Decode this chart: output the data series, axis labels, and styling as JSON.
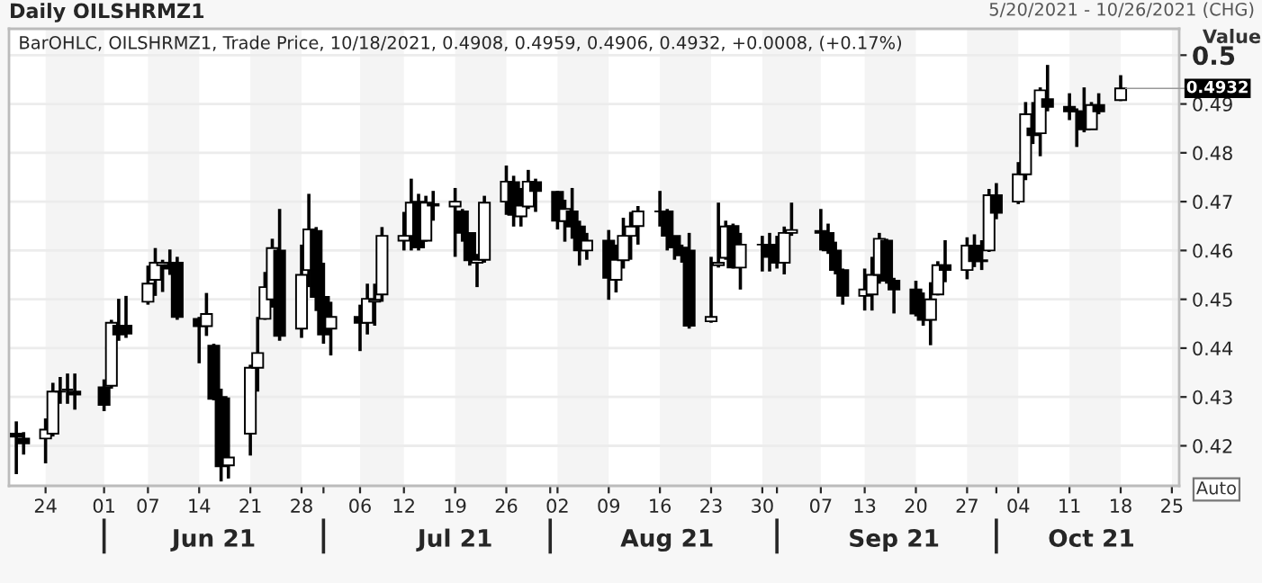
{
  "chart_data": {
    "type": "candlestick",
    "title": "Daily OILSHRMZ1",
    "subtitle": "BarOHLC, OILSHRMZ1, Trade Price, 10/18/2021, 0.4908, 0.4959, 0.4906, 0.4932, +0.0008, (+0.17%)",
    "ylabel": "Value",
    "x": [
      "2021-05-20",
      "2021-05-21",
      "2021-05-24",
      "2021-05-25",
      "2021-05-26",
      "2021-05-27",
      "2021-05-28",
      "2021-06-01",
      "2021-06-02",
      "2021-06-03",
      "2021-06-04",
      "2021-06-07",
      "2021-06-08",
      "2021-06-09",
      "2021-06-10",
      "2021-06-11",
      "2021-06-14",
      "2021-06-15",
      "2021-06-16",
      "2021-06-17",
      "2021-06-18",
      "2021-06-21",
      "2021-06-22",
      "2021-06-23",
      "2021-06-24",
      "2021-06-25",
      "2021-06-28",
      "2021-06-29",
      "2021-06-30",
      "2021-07-01",
      "2021-07-02",
      "2021-07-06",
      "2021-07-07",
      "2021-07-08",
      "2021-07-09",
      "2021-07-12",
      "2021-07-13",
      "2021-07-14",
      "2021-07-15",
      "2021-07-16",
      "2021-07-19",
      "2021-07-20",
      "2021-07-21",
      "2021-07-22",
      "2021-07-23",
      "2021-07-26",
      "2021-07-27",
      "2021-07-28",
      "2021-07-29",
      "2021-07-30",
      "2021-08-02",
      "2021-08-03",
      "2021-08-04",
      "2021-08-05",
      "2021-08-06",
      "2021-08-09",
      "2021-08-10",
      "2021-08-11",
      "2021-08-12",
      "2021-08-13",
      "2021-08-16",
      "2021-08-17",
      "2021-08-18",
      "2021-08-19",
      "2021-08-20",
      "2021-08-23",
      "2021-08-24",
      "2021-08-25",
      "2021-08-26",
      "2021-08-27",
      "2021-08-30",
      "2021-08-31",
      "2021-09-01",
      "2021-09-02",
      "2021-09-03",
      "2021-09-07",
      "2021-09-08",
      "2021-09-09",
      "2021-09-10",
      "2021-09-13",
      "2021-09-14",
      "2021-09-15",
      "2021-09-16",
      "2021-09-17",
      "2021-09-20",
      "2021-09-21",
      "2021-09-22",
      "2021-09-23",
      "2021-09-24",
      "2021-09-27",
      "2021-09-28",
      "2021-09-29",
      "2021-09-30",
      "2021-10-01",
      "2021-10-04",
      "2021-10-05",
      "2021-10-06",
      "2021-10-07",
      "2021-10-08",
      "2021-10-11",
      "2021-10-12",
      "2021-10-13",
      "2021-10-14",
      "2021-10-15",
      "2021-10-18"
    ],
    "ohlc": [
      [
        0.4225,
        0.425,
        0.4142,
        0.4219
      ],
      [
        0.4215,
        0.4228,
        0.4182,
        0.4205
      ],
      [
        0.4215,
        0.4256,
        0.4164,
        0.4233
      ],
      [
        0.4225,
        0.4329,
        0.4219,
        0.4311
      ],
      [
        0.4311,
        0.4341,
        0.4286,
        0.4311
      ],
      [
        0.4315,
        0.4348,
        0.4286,
        0.4315
      ],
      [
        0.4311,
        0.4348,
        0.4274,
        0.4305
      ],
      [
        0.432,
        0.4336,
        0.4271,
        0.4284
      ],
      [
        0.4323,
        0.4458,
        0.4317,
        0.4452
      ],
      [
        0.4446,
        0.4501,
        0.4415,
        0.4428
      ],
      [
        0.4446,
        0.4507,
        0.4421,
        0.443
      ],
      [
        0.4495,
        0.4569,
        0.4489,
        0.4532
      ],
      [
        0.454,
        0.4605,
        0.4507,
        0.4575
      ],
      [
        0.457,
        0.4581,
        0.4515,
        0.4575
      ],
      [
        0.457,
        0.4602,
        0.455,
        0.4563
      ],
      [
        0.4575,
        0.4587,
        0.4458,
        0.4464
      ],
      [
        0.446,
        0.4464,
        0.4369,
        0.4445
      ],
      [
        0.4445,
        0.4513,
        0.4425,
        0.447
      ],
      [
        0.4405,
        0.4409,
        0.4293,
        0.4296
      ],
      [
        0.43,
        0.4317,
        0.4127,
        0.4158
      ],
      [
        0.416,
        0.4299,
        0.4133,
        0.4176
      ],
      [
        0.4225,
        0.4366,
        0.418,
        0.436
      ],
      [
        0.436,
        0.4464,
        0.4311,
        0.439
      ],
      [
        0.446,
        0.4556,
        0.4458,
        0.4525
      ],
      [
        0.45,
        0.4624,
        0.4483,
        0.4605
      ],
      [
        0.46,
        0.4685,
        0.4415,
        0.4425
      ],
      [
        0.444,
        0.4612,
        0.4421,
        0.455
      ],
      [
        0.456,
        0.4716,
        0.4525,
        0.4643
      ],
      [
        0.464,
        0.4648,
        0.4476,
        0.4505
      ],
      [
        0.4505,
        0.4575,
        0.4409,
        0.4428
      ],
      [
        0.444,
        0.4495,
        0.4385,
        0.4464
      ],
      [
        0.4464,
        0.4489,
        0.4394,
        0.4452
      ],
      [
        0.4452,
        0.4532,
        0.4428,
        0.4501
      ],
      [
        0.4495,
        0.4532,
        0.4446,
        0.4499
      ],
      [
        0.451,
        0.4648,
        0.4495,
        0.463
      ],
      [
        0.462,
        0.4679,
        0.46,
        0.463
      ],
      [
        0.463,
        0.4747,
        0.46,
        0.4698
      ],
      [
        0.47,
        0.4716,
        0.46,
        0.4606
      ],
      [
        0.462,
        0.4712,
        0.4618,
        0.4698
      ],
      [
        0.4695,
        0.4722,
        0.4661,
        0.4692
      ],
      [
        0.469,
        0.4728,
        0.4587,
        0.47
      ],
      [
        0.468,
        0.4685,
        0.4618,
        0.4636
      ],
      [
        0.4636,
        0.4636,
        0.4569,
        0.458
      ],
      [
        0.4575,
        0.4593,
        0.4525,
        0.4581
      ],
      [
        0.4581,
        0.4712,
        0.4575,
        0.4698
      ],
      [
        0.47,
        0.4774,
        0.4673,
        0.4741
      ],
      [
        0.474,
        0.4753,
        0.4649,
        0.4673
      ],
      [
        0.467,
        0.4728,
        0.4649,
        0.4692
      ],
      [
        0.469,
        0.4765,
        0.4685,
        0.4741
      ],
      [
        0.474,
        0.4747,
        0.4679,
        0.4722
      ],
      [
        0.472,
        0.4722,
        0.4643,
        0.4661
      ],
      [
        0.466,
        0.4704,
        0.4618,
        0.4685
      ],
      [
        0.468,
        0.4728,
        0.4624,
        0.4649
      ],
      [
        0.4649,
        0.4661,
        0.4569,
        0.46
      ],
      [
        0.46,
        0.4636,
        0.4581,
        0.462
      ],
      [
        0.462,
        0.4642,
        0.4499,
        0.4544
      ],
      [
        0.454,
        0.4612,
        0.4514,
        0.4581
      ],
      [
        0.458,
        0.4667,
        0.4563,
        0.463
      ],
      [
        0.463,
        0.4679,
        0.4581,
        0.4649
      ],
      [
        0.465,
        0.4691,
        0.4612,
        0.468
      ],
      [
        0.468,
        0.4722,
        0.4649,
        0.468
      ],
      [
        0.468,
        0.4685,
        0.46,
        0.463
      ],
      [
        0.463,
        0.463,
        0.4581,
        0.4606
      ],
      [
        0.4606,
        0.4612,
        0.4575,
        0.459
      ],
      [
        0.46,
        0.4636,
        0.444,
        0.4446
      ],
      [
        0.4455,
        0.4587,
        0.4452,
        0.4464
      ],
      [
        0.457,
        0.4698,
        0.4565,
        0.4575
      ],
      [
        0.4585,
        0.4661,
        0.4581,
        0.4649
      ],
      [
        0.465,
        0.4655,
        0.4563,
        0.4565
      ],
      [
        0.4565,
        0.4636,
        0.452,
        0.4612
      ],
      [
        0.4612,
        0.463,
        0.4557,
        0.4612
      ],
      [
        0.4612,
        0.4636,
        0.4557,
        0.4587
      ],
      [
        0.4587,
        0.463,
        0.4563,
        0.4575
      ],
      [
        0.4575,
        0.4649,
        0.4551,
        0.4636
      ],
      [
        0.4636,
        0.4698,
        0.463,
        0.4642
      ],
      [
        0.464,
        0.4685,
        0.46,
        0.4636
      ],
      [
        0.4636,
        0.4655,
        0.4593,
        0.46
      ],
      [
        0.46,
        0.4618,
        0.4551,
        0.456
      ],
      [
        0.456,
        0.4563,
        0.4489,
        0.4507
      ],
      [
        0.4507,
        0.4563,
        0.4477,
        0.452
      ],
      [
        0.451,
        0.4587,
        0.4477,
        0.455
      ],
      [
        0.455,
        0.4636,
        0.4532,
        0.4624
      ],
      [
        0.462,
        0.4624,
        0.4532,
        0.4538
      ],
      [
        0.4538,
        0.4544,
        0.4471,
        0.452
      ],
      [
        0.452,
        0.4538,
        0.4465,
        0.4471
      ],
      [
        0.447,
        0.4514,
        0.4446,
        0.4458
      ],
      [
        0.4458,
        0.4535,
        0.4406,
        0.45
      ],
      [
        0.451,
        0.4578,
        0.4508,
        0.457
      ],
      [
        0.457,
        0.4621,
        0.4535,
        0.456
      ],
      [
        0.456,
        0.4627,
        0.4541,
        0.461
      ],
      [
        0.461,
        0.4633,
        0.4566,
        0.4578
      ],
      [
        0.4578,
        0.4621,
        0.456,
        0.458
      ],
      [
        0.46,
        0.4726,
        0.4597,
        0.4713
      ],
      [
        0.4713,
        0.4738,
        0.4664,
        0.4677
      ],
      [
        0.47,
        0.4781,
        0.4695,
        0.4756
      ],
      [
        0.4756,
        0.4904,
        0.4744,
        0.4879
      ],
      [
        0.485,
        0.4904,
        0.4818,
        0.4836
      ],
      [
        0.484,
        0.4934,
        0.4793,
        0.4928
      ],
      [
        0.491,
        0.498,
        0.4885,
        0.4894
      ],
      [
        0.4894,
        0.4922,
        0.4867,
        0.4885
      ],
      [
        0.4885,
        0.4891,
        0.4812,
        0.4885
      ],
      [
        0.4885,
        0.4934,
        0.4842,
        0.4848
      ],
      [
        0.4848,
        0.4904,
        0.4848,
        0.4898
      ],
      [
        0.4898,
        0.4922,
        0.4879,
        0.4885
      ],
      [
        0.4908,
        0.4959,
        0.4906,
        0.4932
      ]
    ],
    "color": "#000000",
    "xlim": [
      "2021-05-19",
      "2021-10-26"
    ],
    "xticks": [
      {
        "value": "2021-05-24",
        "label": "24"
      },
      {
        "value": "2021-06-01",
        "label": "01"
      },
      {
        "value": "2021-06-07",
        "label": "07"
      },
      {
        "value": "2021-06-14",
        "label": "14"
      },
      {
        "value": "2021-06-21",
        "label": "21"
      },
      {
        "value": "2021-06-28",
        "label": "28"
      },
      {
        "value": "2021-07-06",
        "label": "06"
      },
      {
        "value": "2021-07-12",
        "label": "12"
      },
      {
        "value": "2021-07-19",
        "label": "19"
      },
      {
        "value": "2021-07-26",
        "label": "26"
      },
      {
        "value": "2021-08-02",
        "label": "02"
      },
      {
        "value": "2021-08-09",
        "label": "09"
      },
      {
        "value": "2021-08-16",
        "label": "16"
      },
      {
        "value": "2021-08-23",
        "label": "23"
      },
      {
        "value": "2021-08-30",
        "label": "30"
      },
      {
        "value": "2021-09-07",
        "label": "07"
      },
      {
        "value": "2021-09-13",
        "label": "13"
      },
      {
        "value": "2021-09-20",
        "label": "20"
      },
      {
        "value": "2021-09-27",
        "label": "27"
      },
      {
        "value": "2021-10-04",
        "label": "04"
      },
      {
        "value": "2021-10-11",
        "label": "11"
      },
      {
        "value": "2021-10-18",
        "label": "18"
      },
      {
        "value": "2021-10-25",
        "label": "25"
      }
    ],
    "x2ticks": [
      {
        "value": "2021-06-01",
        "label": null
      },
      {
        "value": "2021-06-16",
        "label": "Jun 21"
      },
      {
        "value": "2021-07-01",
        "label": null
      },
      {
        "value": "2021-07-19",
        "label": "Jul 21"
      },
      {
        "value": "2021-08-01",
        "label": null
      },
      {
        "value": "2021-08-17",
        "label": "Aug 21"
      },
      {
        "value": "2021-09-01",
        "label": null
      },
      {
        "value": "2021-09-17",
        "label": "Sep 21"
      },
      {
        "value": "2021-10-01",
        "label": null
      },
      {
        "value": "2021-10-14",
        "label": "Oct 21"
      }
    ],
    "x2lim": [
      "2021-05-19",
      "2021-10-26"
    ],
    "ylim": [
      0.4118,
      0.5054
    ],
    "yticks": [
      0.42,
      0.43,
      0.44,
      0.45,
      0.46,
      0.47,
      0.48,
      0.49,
      0.5
    ],
    "grid": "y",
    "bands": [
      {
        "axis": "x",
        "from": "2021-05-24",
        "to": "2021-06-01",
        "color": "#f4f4f4"
      },
      {
        "axis": "x",
        "from": "2021-06-07",
        "to": "2021-06-14",
        "color": "#f4f4f4"
      },
      {
        "axis": "x",
        "from": "2021-06-21",
        "to": "2021-06-28",
        "color": "#f4f4f4"
      },
      {
        "axis": "x",
        "from": "2021-07-06",
        "to": "2021-07-12",
        "color": "#f4f4f4"
      },
      {
        "axis": "x",
        "from": "2021-07-19",
        "to": "2021-07-26",
        "color": "#f4f4f4"
      },
      {
        "axis": "x",
        "from": "2021-08-02",
        "to": "2021-08-09",
        "color": "#f4f4f4"
      },
      {
        "axis": "x",
        "from": "2021-08-16",
        "to": "2021-08-23",
        "color": "#f4f4f4"
      },
      {
        "axis": "x",
        "from": "2021-08-30",
        "to": "2021-09-07",
        "color": "#f4f4f4"
      },
      {
        "axis": "x",
        "from": "2021-09-13",
        "to": "2021-09-20",
        "color": "#f4f4f4"
      },
      {
        "axis": "x",
        "from": "2021-09-27",
        "to": "2021-10-04",
        "color": "#f4f4f4"
      },
      {
        "axis": "x",
        "from": "2021-10-11",
        "to": "2021-10-18",
        "color": "#f4f4f4"
      },
      {
        "axis": "x",
        "from": "2021-10-25",
        "to": "2021-10-26",
        "color": "#f4f4f4"
      }
    ],
    "annotations": [
      {
        "text": "0.4932",
        "x": "2021-10-18",
        "y": 0.4932
      },
      "5/20/2021 - 10/26/2021 (CHG)",
      "Auto"
    ]
  }
}
